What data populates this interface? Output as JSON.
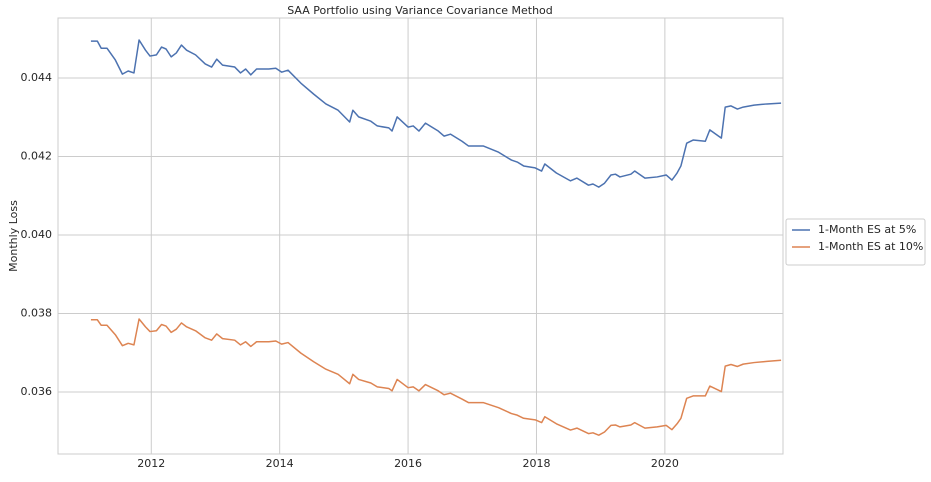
{
  "chart_data": {
    "type": "line",
    "title": "SAA Portfolio using Variance Covariance Method",
    "y_label": "Monthly Loss",
    "x": [
      2011.06,
      2011.16,
      2011.22,
      2011.31,
      2011.44,
      2011.55,
      2011.64,
      2011.73,
      2011.81,
      2011.91,
      2011.98,
      2012.08,
      2012.16,
      2012.23,
      2012.31,
      2012.39,
      2012.47,
      2012.55,
      2012.69,
      2012.84,
      2012.94,
      2013.02,
      2013.11,
      2013.3,
      2013.39,
      2013.47,
      2013.55,
      2013.64,
      2013.83,
      2013.94,
      2014.03,
      2014.13,
      2014.33,
      2014.53,
      2014.72,
      2014.91,
      2015.09,
      2015.14,
      2015.23,
      2015.42,
      2015.52,
      2015.7,
      2015.75,
      2015.83,
      2016.0,
      2016.08,
      2016.17,
      2016.27,
      2016.47,
      2016.56,
      2016.66,
      2016.84,
      2016.94,
      2017.17,
      2017.41,
      2017.61,
      2017.7,
      2017.8,
      2017.98,
      2018.08,
      2018.13,
      2018.31,
      2018.53,
      2018.63,
      2018.81,
      2018.88,
      2018.97,
      2019.06,
      2019.16,
      2019.23,
      2019.3,
      2019.47,
      2019.53,
      2019.69,
      2019.88,
      2020.02,
      2020.11,
      2020.19,
      2020.25,
      2020.34,
      2020.44,
      2020.63,
      2020.7,
      2020.88,
      2020.94,
      2021.03,
      2021.13,
      2021.22,
      2021.39,
      2021.59,
      2021.81
    ],
    "series": [
      {
        "name": "1-Month ES at 5%",
        "color": "#4c72b0",
        "values": [
          0.04494,
          0.04494,
          0.04476,
          0.04476,
          0.04446,
          0.0441,
          0.04418,
          0.04413,
          0.04497,
          0.04471,
          0.04456,
          0.04459,
          0.04479,
          0.04474,
          0.04454,
          0.04464,
          0.04484,
          0.04471,
          0.04459,
          0.04436,
          0.04428,
          0.04448,
          0.04433,
          0.04428,
          0.04413,
          0.04423,
          0.04408,
          0.04423,
          0.04423,
          0.04425,
          0.04415,
          0.0442,
          0.04387,
          0.04359,
          0.04334,
          0.04318,
          0.04288,
          0.04318,
          0.04301,
          0.0429,
          0.04278,
          0.04273,
          0.04265,
          0.04301,
          0.04275,
          0.04278,
          0.04265,
          0.04285,
          0.04265,
          0.04252,
          0.04257,
          0.04239,
          0.04227,
          0.04227,
          0.04211,
          0.04191,
          0.04186,
          0.04176,
          0.04171,
          0.04163,
          0.04181,
          0.04158,
          0.04138,
          0.04145,
          0.04127,
          0.0413,
          0.04122,
          0.04132,
          0.04153,
          0.04155,
          0.04148,
          0.04155,
          0.04163,
          0.04145,
          0.04148,
          0.04153,
          0.0414,
          0.04158,
          0.04176,
          0.04234,
          0.04242,
          0.04239,
          0.04268,
          0.04247,
          0.04326,
          0.04329,
          0.04321,
          0.04326,
          0.04331,
          0.04334,
          0.04336
        ]
      },
      {
        "name": "1-Month ES at 10%",
        "color": "#dd8452",
        "values": [
          0.03784,
          0.03784,
          0.0377,
          0.0377,
          0.03746,
          0.03718,
          0.03724,
          0.0372,
          0.03786,
          0.03766,
          0.03754,
          0.03756,
          0.03772,
          0.03768,
          0.03752,
          0.0376,
          0.03776,
          0.03766,
          0.03756,
          0.03738,
          0.03732,
          0.03748,
          0.03736,
          0.03732,
          0.0372,
          0.03728,
          0.03716,
          0.03728,
          0.03728,
          0.0373,
          0.03722,
          0.03726,
          0.03699,
          0.03677,
          0.03658,
          0.03645,
          0.03621,
          0.03645,
          0.03632,
          0.03623,
          0.03613,
          0.03609,
          0.03603,
          0.03632,
          0.03611,
          0.03613,
          0.03603,
          0.03619,
          0.03603,
          0.03593,
          0.03597,
          0.03582,
          0.03573,
          0.03573,
          0.0356,
          0.03545,
          0.03541,
          0.03533,
          0.03529,
          0.03522,
          0.03537,
          0.03519,
          0.03503,
          0.03508,
          0.03494,
          0.03496,
          0.0349,
          0.03498,
          0.03515,
          0.03516,
          0.03511,
          0.03516,
          0.03522,
          0.03508,
          0.03511,
          0.03515,
          0.03504,
          0.03519,
          0.03533,
          0.03584,
          0.0359,
          0.0359,
          0.03615,
          0.03601,
          0.03666,
          0.0367,
          0.03665,
          0.03671,
          0.03675,
          0.03678,
          0.03681
        ]
      }
    ],
    "xlim": [
      2010.547,
      2021.84
    ],
    "xticks": [
      2012,
      2014,
      2016,
      2018,
      2020
    ],
    "ylim": [
      0.03442,
      0.04553
    ],
    "yticks": [
      0.036,
      0.038,
      {
        "value": 0.04,
        "label": "0.040"
      },
      0.042,
      0.044
    ],
    "grid": true,
    "legend": "right"
  }
}
